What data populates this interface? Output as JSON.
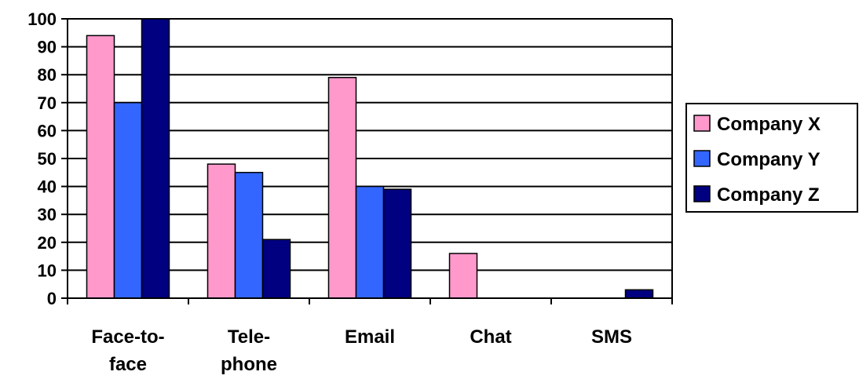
{
  "chart_data": {
    "type": "bar",
    "categories": [
      [
        "Face-to-",
        "face"
      ],
      [
        "Tele-",
        "phone"
      ],
      [
        "Email"
      ],
      [
        "Chat"
      ],
      [
        "SMS"
      ]
    ],
    "series": [
      {
        "name": "Company X",
        "color": "#FF99CC",
        "values": [
          94,
          48,
          79,
          16,
          0
        ]
      },
      {
        "name": "Company Y",
        "color": "#3366FF",
        "values": [
          70,
          45,
          40,
          0,
          0
        ]
      },
      {
        "name": "Company Z",
        "color": "#000080",
        "values": [
          100,
          21,
          39,
          0,
          3
        ]
      }
    ],
    "yticks": [
      0,
      10,
      20,
      30,
      40,
      50,
      60,
      70,
      80,
      90,
      100
    ],
    "ylim": [
      0,
      100
    ],
    "grid": true,
    "legend": "right"
  }
}
